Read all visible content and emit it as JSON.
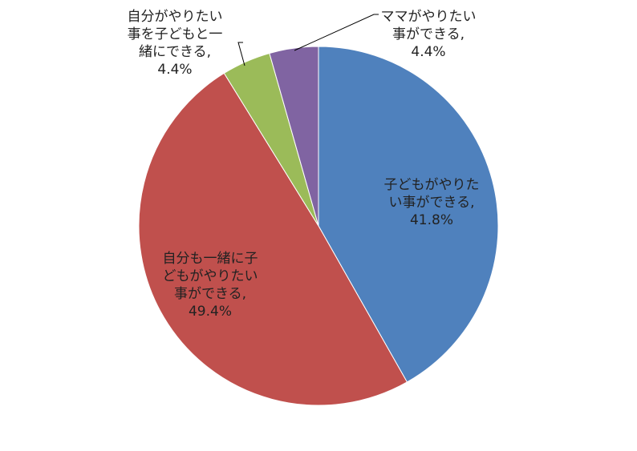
{
  "chart_data": {
    "type": "pie",
    "slices": [
      {
        "label_lines": [
          "子どもがやりた",
          "い事ができる,",
          "41.8%"
        ],
        "value": 41.8,
        "color": "#4F81BD"
      },
      {
        "label_lines": [
          "自分も一緒に子",
          "どもがやりたい",
          "事ができる,",
          "49.4%"
        ],
        "value": 49.4,
        "color": "#C0504D"
      },
      {
        "label_lines": [
          "自分がやりたい",
          "事を子どもと一",
          "緒にできる,",
          "4.4%"
        ],
        "value": 4.4,
        "color": "#9BBB59"
      },
      {
        "label_lines": [
          "ママがやりたい",
          "事ができる,",
          "4.4%"
        ],
        "value": 4.4,
        "color": "#8064A2"
      }
    ],
    "start_angle_deg": 0,
    "direction": "clockwise",
    "legend": "none",
    "label_placement": "inside (large slices), outside with leader lines (small slices)"
  }
}
